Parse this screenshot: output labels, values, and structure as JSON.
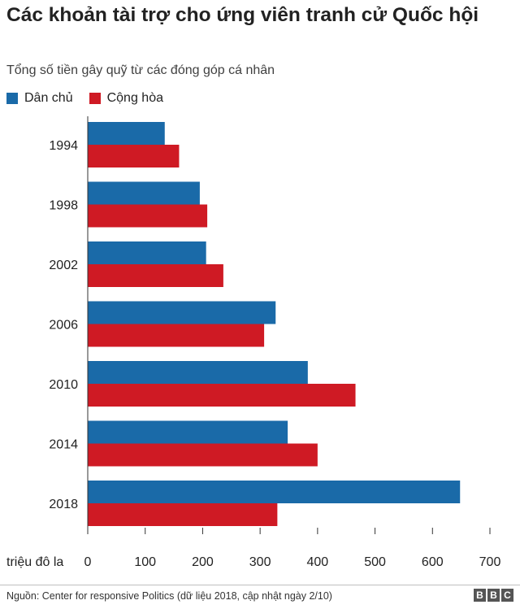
{
  "chart_data": {
    "type": "bar",
    "orientation": "horizontal",
    "title": "Các khoản tài trợ cho ứng viên tranh cử Quốc hội",
    "subtitle": "Tổng số tiền gây quỹ từ các đóng góp cá nhân",
    "xlabel": "triệu đô la",
    "categories": [
      "1994",
      "1998",
      "2002",
      "2006",
      "2010",
      "2014",
      "2018"
    ],
    "series": [
      {
        "name": "Dân chủ",
        "color": "#1a6aa8",
        "values": [
          134,
          195,
          206,
          327,
          383,
          348,
          648
        ]
      },
      {
        "name": "Cộng hòa",
        "color": "#cf1a24",
        "values": [
          159,
          208,
          236,
          307,
          466,
          400,
          330
        ]
      }
    ],
    "xlim": [
      0,
      700
    ],
    "xticks": [
      "0",
      "100",
      "200",
      "300",
      "400",
      "500",
      "600",
      "700"
    ],
    "legend_position": "top-left",
    "grid": false
  },
  "footer": {
    "source": "Nguồn: Center for responsive Politics (dữ liệu 2018, cập nhật ngày 2/10)",
    "brand": [
      "B",
      "B",
      "C"
    ]
  }
}
